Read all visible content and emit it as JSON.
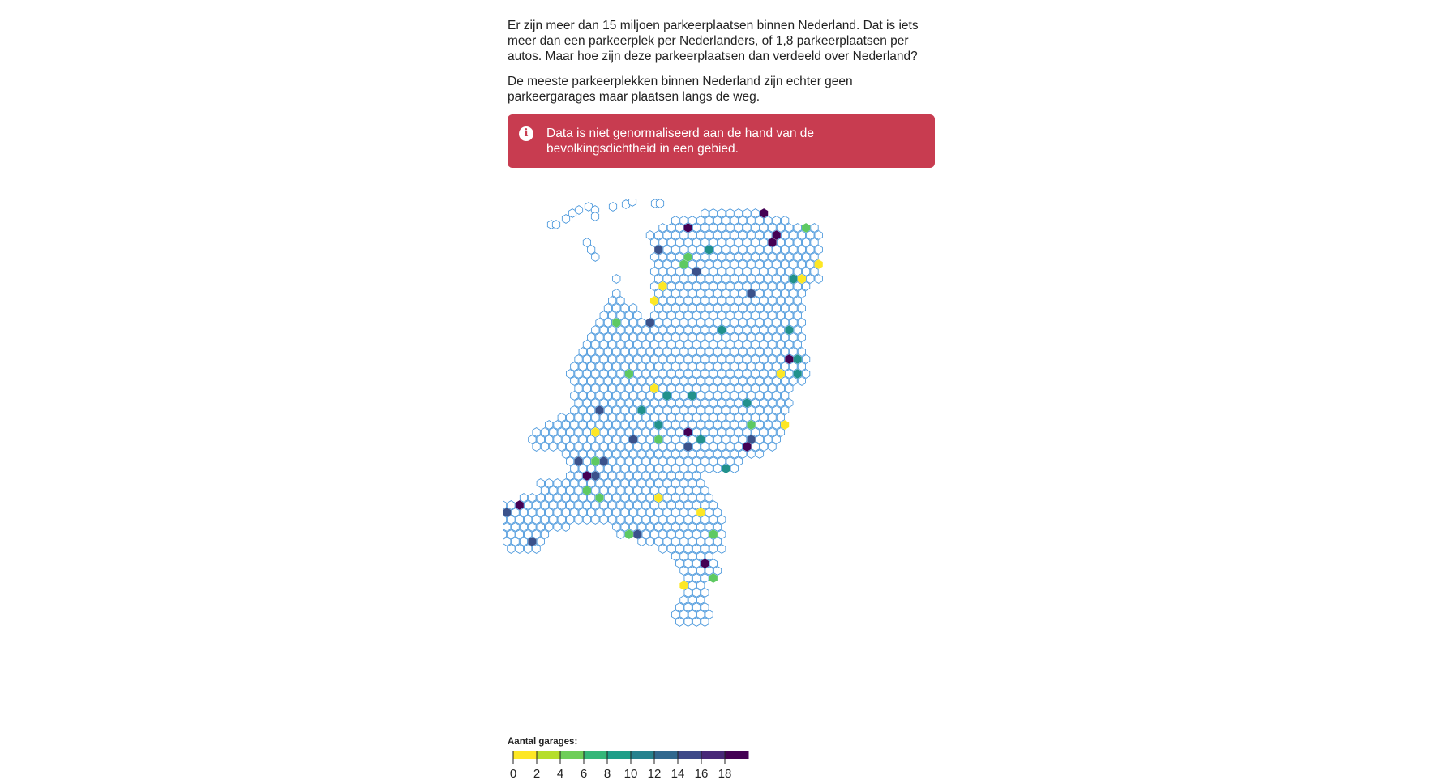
{
  "text": {
    "paragraph_1": "Er zijn meer dan 15 miljoen parkeerplaatsen binnen Nederland. Dat is iets meer dan een parkeerplek per Nederlanders, of 1,8 parkeerplaatsen per autos. Maar hoe zijn deze parkeerplaatsen dan verdeeld over Nederland?",
    "paragraph_2": "De meeste parkeerplekken binnen Nederland zijn echter geen parkeergarages maar plaatsen langs de weg.",
    "alert": "Data is niet genormaliseerd aan de hand van de bevolkingsdichtheid in een gebied.",
    "alert_icon": "info-icon"
  },
  "legend": {
    "title": "Aantal garages:",
    "ticks": [
      "0",
      "2",
      "4",
      "6",
      "8",
      "10",
      "12",
      "14",
      "16",
      "18"
    ],
    "range": [
      0,
      20
    ],
    "colormap": "viridis-reversed"
  },
  "map": {
    "region": "Nederland",
    "cell_shape": "hexagon",
    "empty_cell_outline": "#3b8fd9",
    "empty_cell_fill": "#ffffff",
    "colors": {
      "low": "#fde725",
      "mid_low": "#5ec962",
      "mid": "#21918c",
      "mid_high": "#3b528b",
      "high": "#440154"
    }
  }
}
